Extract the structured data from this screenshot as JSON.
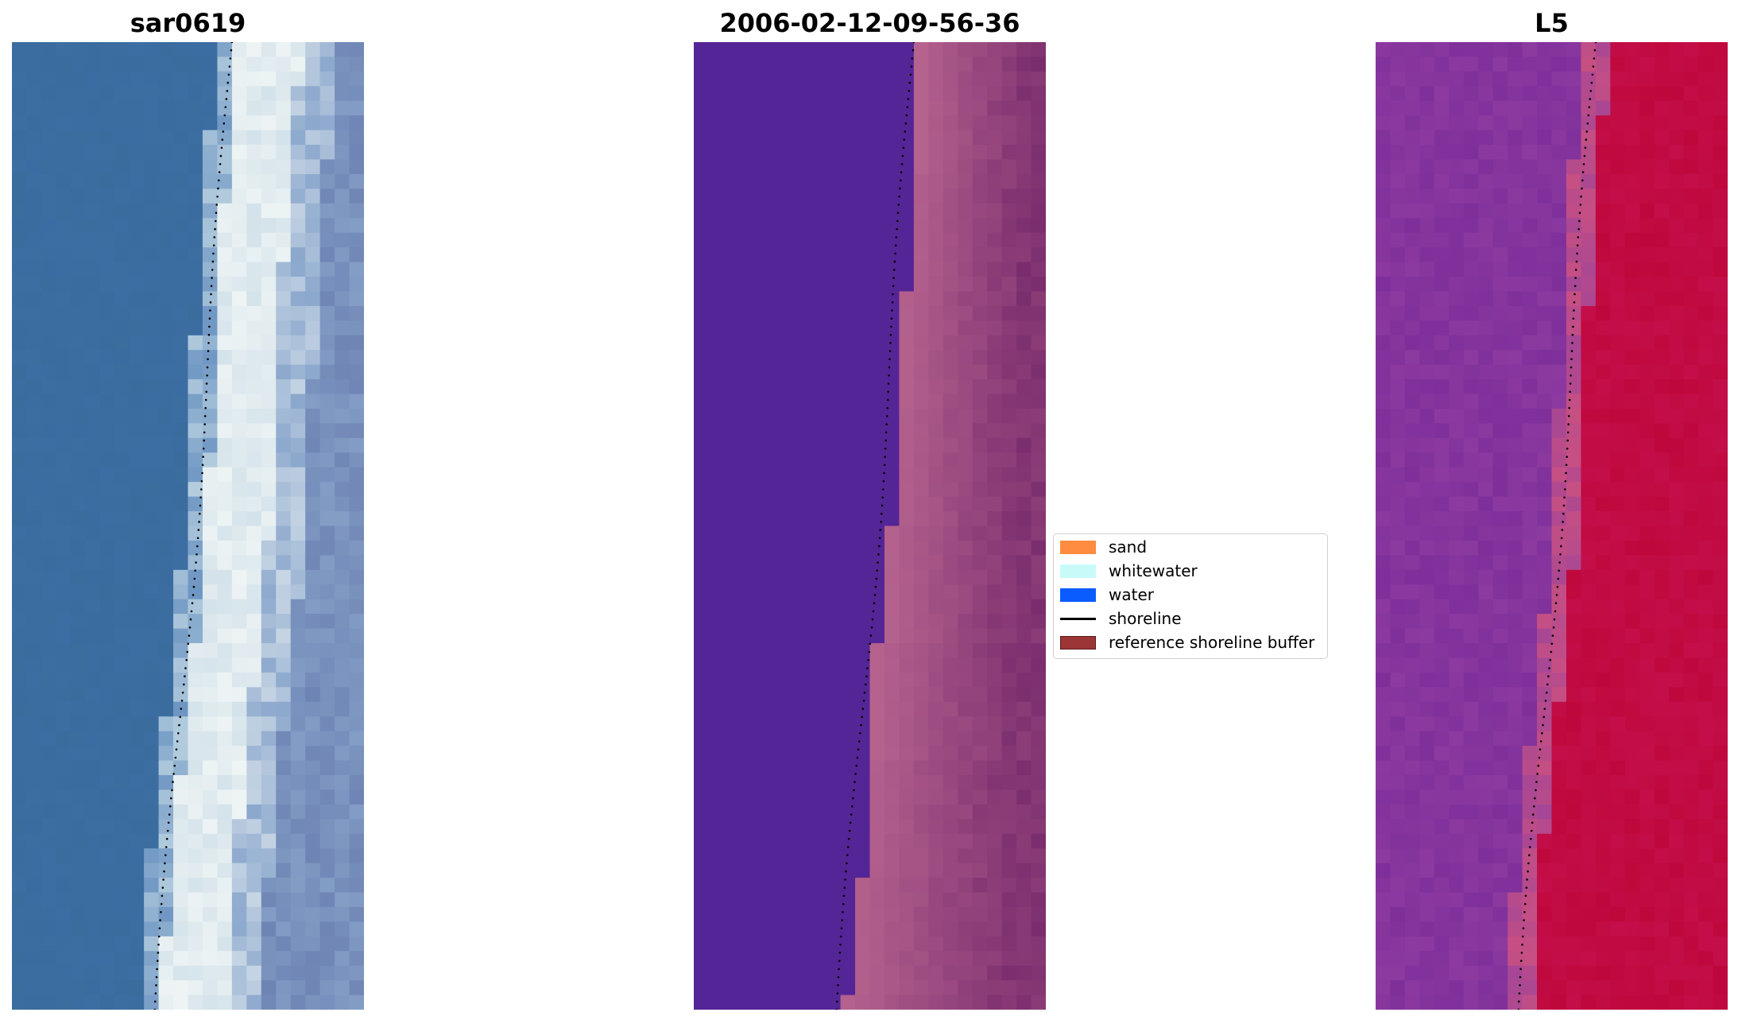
{
  "panels": [
    {
      "title": "sar0619",
      "kind": "rgb"
    },
    {
      "title": "2006-02-12-09-56-36",
      "kind": "classification"
    },
    {
      "title": "L5",
      "kind": "water-index"
    }
  ],
  "legend": {
    "items": [
      {
        "label": "sand",
        "color": "#ff8c40",
        "type": "patch"
      },
      {
        "label": "whitewater",
        "color": "#c8fafa",
        "type": "patch"
      },
      {
        "label": "water",
        "color": "#0a5cff",
        "type": "patch"
      },
      {
        "label": "shoreline",
        "color": "#000000",
        "type": "line"
      },
      {
        "label": "reference shoreline buffer",
        "color": "#9b3536",
        "edge": "#5a1a1a",
        "type": "patch"
      }
    ]
  },
  "colors": {
    "water_class": "#542596",
    "land_class": "#b5628e",
    "land_class_dark": "#7a2d6e",
    "shoreline_dots": "#000000"
  }
}
